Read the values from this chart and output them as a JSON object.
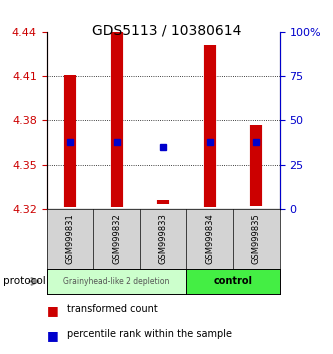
{
  "title": "GDS5113 / 10380614",
  "samples": [
    "GSM999831",
    "GSM999832",
    "GSM999833",
    "GSM999834",
    "GSM999835"
  ],
  "bar_bottom": [
    4.321,
    4.321,
    4.323,
    4.321,
    4.322
  ],
  "bar_top": [
    4.411,
    4.44,
    4.326,
    4.431,
    4.377
  ],
  "blue_marker_y": [
    4.365,
    4.365,
    4.362,
    4.365,
    4.365
  ],
  "ylim": [
    4.32,
    4.44
  ],
  "yticks_left": [
    4.32,
    4.35,
    4.38,
    4.41,
    4.44
  ],
  "yticks_right": [
    0,
    25,
    50,
    75,
    100
  ],
  "yticks_right_labels": [
    "0",
    "25",
    "50",
    "75",
    "100%"
  ],
  "bar_color": "#cc0000",
  "blue_color": "#0000cc",
  "left_tick_color": "#cc0000",
  "right_tick_color": "#0000cc",
  "group1_label": "Grainyhead-like 2 depletion",
  "group2_label": "control",
  "group1_color": "#ccffcc",
  "group2_color": "#44ee44",
  "protocol_label": "protocol",
  "legend_red_label": "transformed count",
  "legend_blue_label": "percentile rank within the sample",
  "bar_width": 0.35,
  "bg_color": "#ffffff",
  "plot_bg_color": "#ffffff",
  "title_fontsize": 10
}
